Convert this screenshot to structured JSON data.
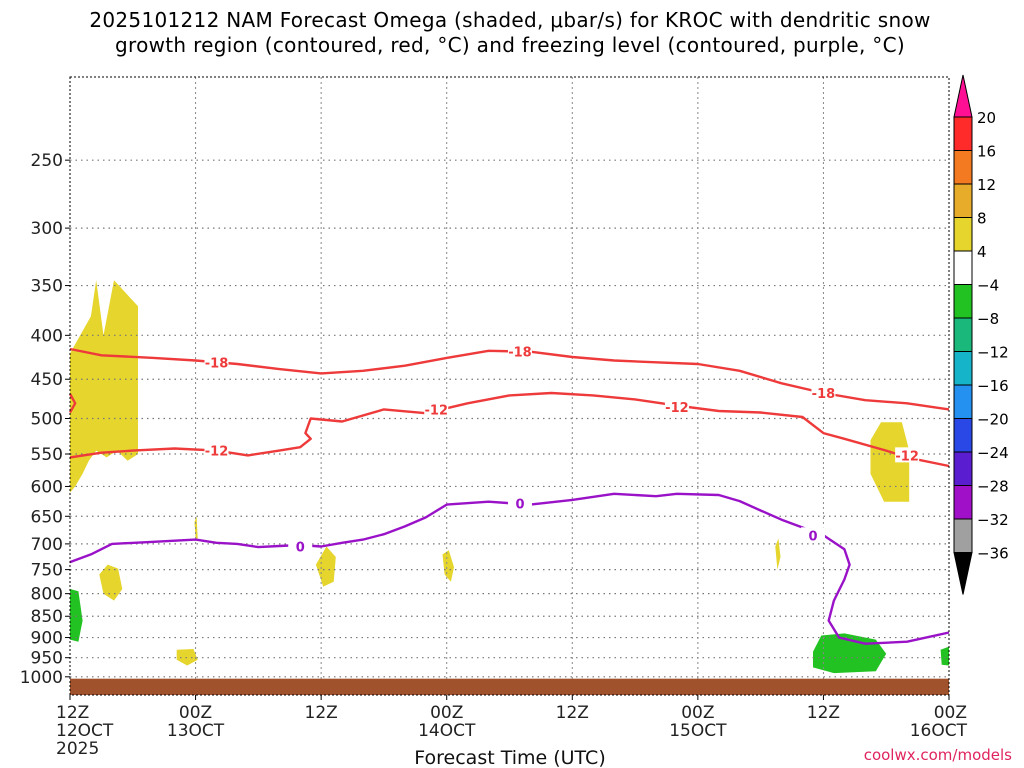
{
  "chart_data": {
    "type": "heatmap",
    "title_lines": [
      "2025101212 NAM Forecast Omega (shaded, μbar/s) for KROC with dendritic snow",
      "growth region (contoured, red, °C) and freezing level (contoured, purple, °C)"
    ],
    "xlabel": "Forecast Time (UTC)",
    "watermark": "coolwx.com/models",
    "x_range_hours": [
      0,
      84
    ],
    "y_axis": {
      "scale": "log-pressure",
      "range": [
        1050,
        200
      ],
      "ticks": [
        250,
        300,
        350,
        400,
        450,
        500,
        550,
        600,
        650,
        700,
        750,
        800,
        850,
        900,
        950,
        1000
      ]
    },
    "x_ticks": [
      {
        "h": 0,
        "line1": "12Z",
        "line2": "12OCT",
        "line3": "2025"
      },
      {
        "h": 12,
        "line1": "00Z",
        "line2": "13OCT",
        "line3": ""
      },
      {
        "h": 24,
        "line1": "12Z",
        "line2": "",
        "line3": ""
      },
      {
        "h": 36,
        "line1": "00Z",
        "line2": "14OCT",
        "line3": ""
      },
      {
        "h": 48,
        "line1": "12Z",
        "line2": "",
        "line3": ""
      },
      {
        "h": 60,
        "line1": "00Z",
        "line2": "15OCT",
        "line3": ""
      },
      {
        "h": 72,
        "line1": "12Z",
        "line2": "",
        "line3": ""
      },
      {
        "h": 84,
        "line1": "00Z",
        "line2": "16OCT",
        "line3": ""
      }
    ],
    "colorbar": {
      "labels": [
        "20",
        "16",
        "12",
        "8",
        "4",
        "−4",
        "−8",
        "−12",
        "−16",
        "−20",
        "−24",
        "−28",
        "−32",
        "−36"
      ],
      "colors": [
        "#ff0f93",
        "#ff2a2a",
        "#f47a22",
        "#e8ac2b",
        "#e6d52c",
        "#ffffff",
        "#22c222",
        "#1ab87a",
        "#16b4c8",
        "#2490f0",
        "#2a48e6",
        "#5a1ed0",
        "#a010c8",
        "#a0a0a0",
        "#000000"
      ]
    },
    "contours": [
      {
        "name": "-18",
        "color": "#ee3a3a",
        "label": "-18",
        "points": [
          [
            0,
            415
          ],
          [
            3,
            422
          ],
          [
            8,
            425
          ],
          [
            12,
            428
          ],
          [
            16,
            432
          ],
          [
            20,
            438
          ],
          [
            24,
            443
          ],
          [
            28,
            440
          ],
          [
            32,
            434
          ],
          [
            36,
            425
          ],
          [
            40,
            417
          ],
          [
            44,
            418
          ],
          [
            48,
            424
          ],
          [
            52,
            428
          ],
          [
            56,
            430
          ],
          [
            60,
            432
          ],
          [
            64,
            440
          ],
          [
            68,
            455
          ],
          [
            72,
            467
          ],
          [
            76,
            476
          ],
          [
            80,
            480
          ],
          [
            84,
            488
          ]
        ],
        "label_at": [
          [
            14,
            430
          ],
          [
            43,
            418
          ],
          [
            72,
            467
          ]
        ]
      },
      {
        "name": "-12 lower",
        "color": "#ee3a3a",
        "label": "-12",
        "points": [
          [
            0,
            555
          ],
          [
            3,
            548
          ],
          [
            6,
            545
          ],
          [
            10,
            542
          ],
          [
            14,
            545
          ],
          [
            17,
            552
          ],
          [
            20,
            545
          ],
          [
            22,
            540
          ],
          [
            23,
            528
          ],
          [
            22.5,
            520
          ],
          [
            23,
            500
          ],
          [
            26,
            504
          ],
          [
            30,
            488
          ],
          [
            34,
            493
          ],
          [
            38,
            480
          ],
          [
            42,
            470
          ],
          [
            46,
            467
          ],
          [
            50,
            470
          ],
          [
            54,
            475
          ],
          [
            58,
            483
          ],
          [
            62,
            490
          ],
          [
            66,
            492
          ],
          [
            70,
            498
          ],
          [
            72,
            520
          ],
          [
            74,
            528
          ],
          [
            78,
            545
          ],
          [
            80,
            555
          ],
          [
            84,
            568
          ]
        ],
        "label_at": [
          [
            14,
            545
          ],
          [
            35,
            488
          ],
          [
            58,
            485
          ],
          [
            80,
            552
          ]
        ]
      },
      {
        "name": "-12 upper",
        "color": "#ee3a3a",
        "label": "",
        "points": [
          [
            0,
            468
          ],
          [
            0.5,
            480
          ],
          [
            0,
            492
          ]
        ],
        "label_at": []
      },
      {
        "name": "0",
        "color": "#9a12c8",
        "label": "0",
        "points": [
          [
            0,
            735
          ],
          [
            2,
            720
          ],
          [
            4,
            700
          ],
          [
            8,
            696
          ],
          [
            12,
            692
          ],
          [
            14,
            698
          ],
          [
            16,
            700
          ],
          [
            18,
            706
          ],
          [
            20,
            704
          ],
          [
            22,
            702
          ],
          [
            24,
            705
          ],
          [
            26,
            698
          ],
          [
            28,
            692
          ],
          [
            30,
            682
          ],
          [
            32,
            668
          ],
          [
            34,
            652
          ],
          [
            36,
            630
          ],
          [
            40,
            625
          ],
          [
            44,
            630
          ],
          [
            48,
            622
          ],
          [
            52,
            612
          ],
          [
            56,
            616
          ],
          [
            58,
            612
          ],
          [
            62,
            614
          ],
          [
            64,
            624
          ],
          [
            66,
            640
          ],
          [
            68,
            656
          ],
          [
            72,
            684
          ],
          [
            74,
            710
          ],
          [
            74.5,
            740
          ],
          [
            74,
            770
          ],
          [
            73,
            815
          ],
          [
            72.5,
            860
          ],
          [
            73.5,
            900
          ],
          [
            76,
            915
          ],
          [
            80,
            910
          ],
          [
            84,
            888
          ]
        ],
        "label_at": [
          [
            22,
            705
          ],
          [
            43,
            628
          ],
          [
            71,
            684
          ]
        ]
      }
    ],
    "shaded_regions": [
      {
        "name": "ascent 4-8",
        "color": "#e6d52c",
        "points": [
          [
            0,
            610
          ],
          [
            0,
            420
          ],
          [
            2,
            380
          ],
          [
            2.5,
            345
          ],
          [
            3.2,
            400
          ],
          [
            4.2,
            345
          ],
          [
            6.5,
            370
          ],
          [
            6.5,
            550
          ],
          [
            5.5,
            560
          ],
          [
            4.5,
            545
          ],
          [
            3.5,
            555
          ],
          [
            2.5,
            545
          ],
          [
            1.8,
            560
          ],
          [
            1.2,
            580
          ],
          [
            0.5,
            600
          ]
        ]
      },
      {
        "name": "ascent 4-8",
        "color": "#e6d52c",
        "points": [
          [
            2.8,
            760
          ],
          [
            3.6,
            740
          ],
          [
            4.6,
            748
          ],
          [
            5,
            790
          ],
          [
            4.2,
            815
          ],
          [
            3.2,
            800
          ]
        ]
      },
      {
        "name": "ascent 4-8",
        "color": "#e6d52c",
        "points": [
          [
            10.2,
            930
          ],
          [
            11.8,
            928
          ],
          [
            12.2,
            955
          ],
          [
            11.2,
            970
          ],
          [
            10.2,
            955
          ]
        ]
      },
      {
        "name": "ascent 4-8",
        "color": "#e6d52c",
        "points": [
          [
            11.9,
            660
          ],
          [
            12.1,
            650
          ],
          [
            12.2,
            690
          ],
          [
            12,
            690
          ]
        ]
      },
      {
        "name": "ascent 4-8",
        "color": "#e6d52c",
        "points": [
          [
            23.5,
            740
          ],
          [
            24.5,
            705
          ],
          [
            25.4,
            725
          ],
          [
            25.2,
            775
          ],
          [
            24.2,
            785
          ]
        ]
      },
      {
        "name": "ascent 4-8",
        "color": "#e6d52c",
        "points": [
          [
            35.6,
            720
          ],
          [
            36.2,
            712
          ],
          [
            36.7,
            745
          ],
          [
            36.4,
            775
          ],
          [
            35.8,
            760
          ]
        ]
      },
      {
        "name": "ascent 4-8",
        "color": "#e6d52c",
        "points": [
          [
            67.4,
            705
          ],
          [
            67.7,
            690
          ],
          [
            67.9,
            725
          ],
          [
            67.6,
            750
          ]
        ]
      },
      {
        "name": "ascent 4-8",
        "color": "#e6d52c",
        "points": [
          [
            76.5,
            530
          ],
          [
            77.5,
            505
          ],
          [
            79.5,
            505
          ],
          [
            80.2,
            545
          ],
          [
            80.2,
            625
          ],
          [
            77.8,
            625
          ],
          [
            76.5,
            580
          ]
        ]
      },
      {
        "name": "descent -4 to -8",
        "color": "#22c222",
        "points": [
          [
            0,
            790
          ],
          [
            0.8,
            795
          ],
          [
            1.2,
            860
          ],
          [
            0.8,
            910
          ],
          [
            0,
            905
          ]
        ]
      },
      {
        "name": "descent -4 to -8",
        "color": "#22c222",
        "points": [
          [
            71,
            935
          ],
          [
            71.8,
            895
          ],
          [
            74,
            890
          ],
          [
            77,
            905
          ],
          [
            78,
            940
          ],
          [
            77,
            985
          ],
          [
            73,
            990
          ],
          [
            71,
            975
          ]
        ]
      },
      {
        "name": "descent -4 to -8",
        "color": "#22c222",
        "points": [
          [
            83.2,
            930
          ],
          [
            84,
            922
          ],
          [
            84,
            970
          ],
          [
            83.3,
            968
          ]
        ]
      }
    ],
    "ground": {
      "color": "#a0522d",
      "top_hpa": 1005
    }
  }
}
